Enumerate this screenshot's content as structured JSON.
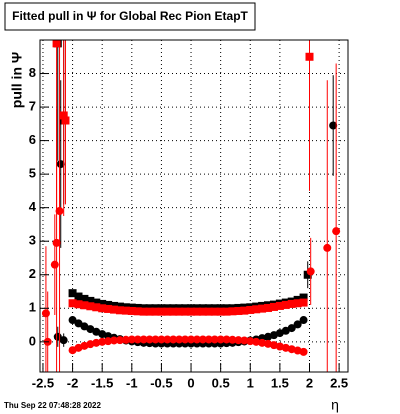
{
  "chart_data": {
    "type": "scatter",
    "title": "Fitted pull in  Ψ  for Global Rec Pion EtapT",
    "y_label": "pull in  Ψ",
    "x_label": "η",
    "footer": "Thu Sep 22 07:48:28 2022",
    "xlim": [
      -2.55,
      2.65
    ],
    "ylim": [
      -0.9,
      9.0
    ],
    "xticks": [
      -2.5,
      -2,
      -1.5,
      -1,
      -0.5,
      0,
      0.5,
      1,
      1.5,
      2,
      2.5
    ],
    "yticks": [
      0,
      1,
      2,
      3,
      4,
      5,
      6,
      7,
      8
    ],
    "grid": true,
    "series": [
      {
        "color": "#000000",
        "marker": "square",
        "x": [
          -2.0,
          -1.9,
          -1.8,
          -1.7,
          -1.6,
          -1.5,
          -1.4,
          -1.3,
          -1.2,
          -1.1,
          -1.0,
          -0.9,
          -0.8,
          -0.7,
          -0.6,
          -0.5,
          -0.4,
          -0.3,
          -0.2,
          -0.1,
          0.0,
          0.1,
          0.2,
          0.3,
          0.4,
          0.5,
          0.6,
          0.7,
          0.8,
          0.9,
          1.0,
          1.1,
          1.2,
          1.3,
          1.4,
          1.5,
          1.6,
          1.7,
          1.8,
          1.9
        ],
        "values": [
          1.45,
          1.35,
          1.28,
          1.22,
          1.17,
          1.13,
          1.1,
          1.07,
          1.05,
          1.03,
          1.02,
          1.01,
          1.0,
          1.0,
          1.0,
          1.0,
          1.0,
          1.0,
          1.0,
          1.0,
          1.0,
          1.0,
          1.0,
          1.0,
          1.0,
          1.0,
          1.0,
          1.0,
          1.01,
          1.02,
          1.03,
          1.05,
          1.07,
          1.09,
          1.11,
          1.14,
          1.17,
          1.2,
          1.25,
          1.32
        ]
      },
      {
        "color": "#000000",
        "marker": "circle",
        "x": [
          -2.0,
          -1.9,
          -1.8,
          -1.7,
          -1.6,
          -1.5,
          -1.4,
          -1.3,
          -1.2,
          -1.1,
          -1.0,
          -0.9,
          -0.8,
          -0.7,
          -0.6,
          -0.5,
          -0.4,
          -0.3,
          -0.2,
          -0.1,
          0.0,
          0.1,
          0.2,
          0.3,
          0.4,
          0.5,
          0.6,
          0.7,
          0.8,
          0.9,
          1.0,
          1.1,
          1.2,
          1.3,
          1.4,
          1.5,
          1.6,
          1.7,
          1.8,
          1.9
        ],
        "values": [
          0.65,
          0.55,
          0.46,
          0.38,
          0.3,
          0.23,
          0.17,
          0.12,
          0.08,
          0.04,
          0.01,
          -0.01,
          -0.03,
          -0.04,
          -0.05,
          -0.05,
          -0.05,
          -0.05,
          -0.05,
          -0.05,
          -0.05,
          -0.05,
          -0.05,
          -0.05,
          -0.05,
          -0.05,
          -0.04,
          -0.03,
          -0.01,
          0.01,
          0.04,
          0.07,
          0.11,
          0.15,
          0.2,
          0.26,
          0.33,
          0.41,
          0.52,
          0.65
        ]
      },
      {
        "color": "#ff0000",
        "marker": "square",
        "x": [
          -2.0,
          -1.9,
          -1.8,
          -1.7,
          -1.6,
          -1.5,
          -1.4,
          -1.3,
          -1.2,
          -1.1,
          -1.0,
          -0.9,
          -0.8,
          -0.7,
          -0.6,
          -0.5,
          -0.4,
          -0.3,
          -0.2,
          -0.1,
          0.0,
          0.1,
          0.2,
          0.3,
          0.4,
          0.5,
          0.6,
          0.7,
          0.8,
          0.9,
          1.0,
          1.1,
          1.2,
          1.3,
          1.4,
          1.5,
          1.6,
          1.7,
          1.8,
          1.9
        ],
        "values": [
          1.15,
          1.12,
          1.09,
          1.06,
          1.03,
          1.0,
          0.98,
          0.96,
          0.94,
          0.93,
          0.92,
          0.91,
          0.9,
          0.9,
          0.9,
          0.9,
          0.9,
          0.9,
          0.9,
          0.9,
          0.9,
          0.9,
          0.9,
          0.9,
          0.9,
          0.9,
          0.9,
          0.91,
          0.92,
          0.93,
          0.95,
          0.97,
          0.99,
          1.01,
          1.04,
          1.07,
          1.1,
          1.13,
          1.15,
          1.17
        ]
      },
      {
        "color": "#ff0000",
        "marker": "circle",
        "x": [
          -2.0,
          -1.9,
          -1.8,
          -1.7,
          -1.6,
          -1.5,
          -1.4,
          -1.3,
          -1.2,
          -1.1,
          -1.0,
          -0.9,
          -0.8,
          -0.7,
          -0.6,
          -0.5,
          -0.4,
          -0.3,
          -0.2,
          -0.1,
          0.0,
          0.1,
          0.2,
          0.3,
          0.4,
          0.5,
          0.6,
          0.7,
          0.8,
          0.9,
          1.0,
          1.1,
          1.2,
          1.3,
          1.4,
          1.5,
          1.6,
          1.7,
          1.8,
          1.9
        ],
        "values": [
          -0.25,
          -0.18,
          -0.12,
          -0.07,
          -0.03,
          0.0,
          0.02,
          0.04,
          0.05,
          0.06,
          0.07,
          0.07,
          0.07,
          0.07,
          0.07,
          0.07,
          0.07,
          0.07,
          0.07,
          0.07,
          0.07,
          0.07,
          0.07,
          0.07,
          0.07,
          0.07,
          0.07,
          0.06,
          0.05,
          0.04,
          0.02,
          0.0,
          -0.03,
          -0.06,
          -0.1,
          -0.14,
          -0.18,
          -0.22,
          -0.26,
          -0.3
        ]
      },
      {
        "color": "#000000",
        "marker": "square",
        "x": [
          -2.25,
          -2.15,
          1.97
        ],
        "values": [
          8.9,
          6.6,
          2.0
        ],
        "errors": [
          3.5,
          2.5,
          0.4
        ]
      },
      {
        "color": "#000000",
        "marker": "circle",
        "x": [
          -2.2,
          -2.25,
          -2.15,
          2.4
        ],
        "values": [
          5.3,
          0.15,
          0.05,
          6.45
        ],
        "errors": [
          2.5,
          0.3,
          0.2,
          1.5
        ]
      },
      {
        "color": "#ff0000",
        "marker": "square",
        "x": [
          -2.27,
          -2.15,
          -2.12,
          2.0
        ],
        "values": [
          8.9,
          6.75,
          6.6,
          8.5
        ],
        "errors": [
          5,
          3,
          2.5,
          4
        ]
      },
      {
        "color": "#ff0000",
        "marker": "circle",
        "x": [
          -2.45,
          -2.42,
          -2.3,
          -2.27,
          -2.22,
          2.02,
          2.3,
          2.45
        ],
        "values": [
          0.85,
          0.0,
          2.3,
          2.95,
          3.9,
          2.1,
          2.8,
          3.3
        ],
        "errors": [
          2,
          1.5,
          1.5,
          4,
          5,
          1,
          5,
          5
        ]
      }
    ]
  }
}
